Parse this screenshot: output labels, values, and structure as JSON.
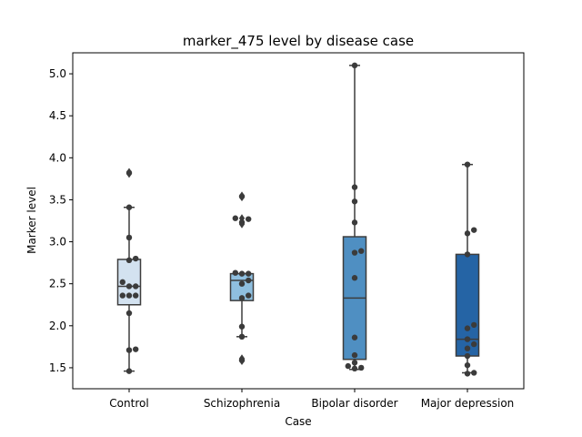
{
  "chart_data": {
    "type": "box",
    "title": "marker_475 level by disease case",
    "xlabel": "Case",
    "ylabel": "Marker level",
    "ylim": [
      1.25,
      5.25
    ],
    "yticks": [
      1.5,
      2.0,
      2.5,
      3.0,
      3.5,
      4.0,
      4.5,
      5.0
    ],
    "ytick_labels": [
      "1.5",
      "2.0",
      "2.5",
      "3.0",
      "3.5",
      "4.0",
      "4.5",
      "5.0"
    ],
    "grid": false,
    "legend": "none",
    "categories": [
      "Control",
      "Schizophrenia",
      "Bipolar disorder",
      "Major depression"
    ],
    "colors": [
      "#d3e2f0",
      "#8fbfdf",
      "#4f8fc2",
      "#2564a5"
    ],
    "point_color": "#3b3b3b",
    "box_edge_color": "#3d3d3d",
    "boxes": [
      {
        "q1": 2.25,
        "median": 2.47,
        "q3": 2.79,
        "whisker_low": 1.46,
        "whisker_high": 3.41,
        "outliers": [
          3.81,
          3.83
        ]
      },
      {
        "q1": 2.3,
        "median": 2.54,
        "q3": 2.62,
        "whisker_low": 1.87,
        "whisker_high": 2.62,
        "outliers": [
          3.21,
          3.24,
          3.28,
          3.53,
          3.55,
          1.58,
          1.61
        ]
      },
      {
        "q1": 1.6,
        "median": 2.33,
        "q3": 3.06,
        "whisker_low": 1.48,
        "whisker_high": 5.1,
        "outliers": []
      },
      {
        "q1": 1.64,
        "median": 1.84,
        "q3": 2.85,
        "whisker_low": 1.44,
        "whisker_high": 3.92,
        "outliers": []
      }
    ],
    "points": [
      {
        "category": "Control",
        "values": [
          3.82,
          3.41,
          3.05,
          2.8,
          2.78,
          2.52,
          2.47,
          2.47,
          2.36,
          2.36,
          2.36,
          2.15,
          1.72,
          1.71,
          1.46
        ]
      },
      {
        "category": "Schizophrenia",
        "values": [
          3.54,
          3.28,
          3.27,
          3.23,
          2.63,
          2.62,
          2.62,
          2.54,
          2.5,
          2.36,
          2.33,
          1.99,
          1.87,
          1.59
        ]
      },
      {
        "category": "Bipolar disorder",
        "values": [
          5.1,
          3.65,
          3.48,
          3.23,
          2.89,
          2.87,
          2.57,
          1.86,
          1.65,
          1.56,
          1.52,
          1.5,
          1.49
        ]
      },
      {
        "category": "Major depression",
        "values": [
          3.92,
          3.14,
          3.1,
          2.85,
          2.01,
          1.97,
          1.84,
          1.78,
          1.73,
          1.64,
          1.53,
          1.44,
          1.43
        ]
      }
    ]
  }
}
